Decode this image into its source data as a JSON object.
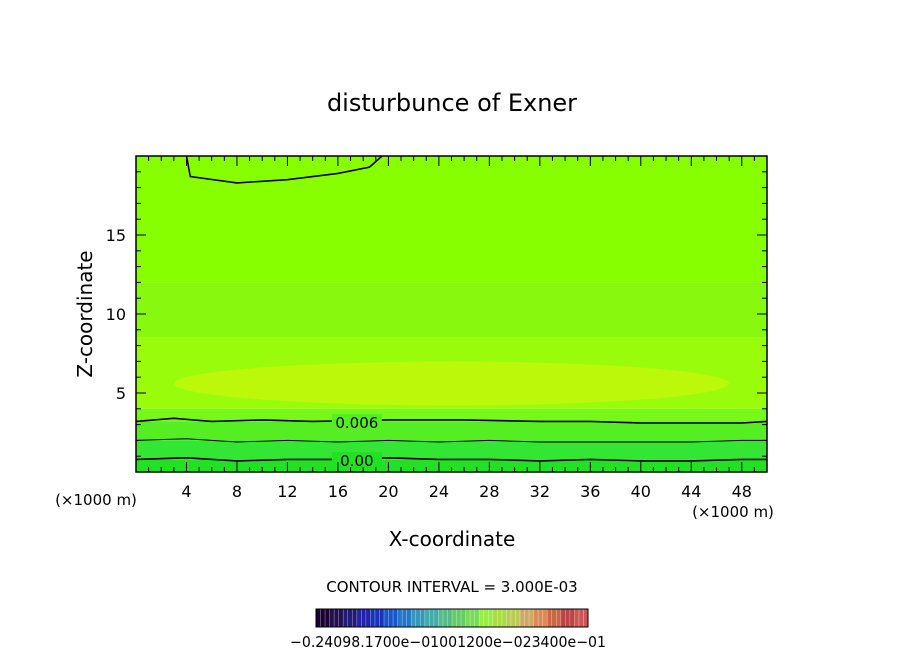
{
  "chart_data": {
    "type": "heatmap",
    "title": "disturbunce of Exner",
    "xlabel": "X-coordinate",
    "ylabel": "Z-coordinate",
    "x_unit_left": "(×1000 m)",
    "x_unit_right": "(×1000 m)",
    "xlim": [
      0,
      50
    ],
    "ylim": [
      0,
      20
    ],
    "x_ticks": [
      4,
      8,
      12,
      16,
      20,
      24,
      28,
      32,
      36,
      40,
      44,
      48
    ],
    "y_ticks": [
      5,
      10,
      15
    ],
    "contour_interval_text": "CONTOUR INTERVAL = 3.000E-03",
    "contour_labels": [
      {
        "text": "0.006",
        "x": 17.5,
        "z": 3.1
      },
      {
        "text": "0.00",
        "x": 17.5,
        "z": 0.7
      }
    ],
    "contours": [
      {
        "name": "top",
        "points": [
          [
            4,
            20
          ],
          [
            4.3,
            18.7
          ],
          [
            8,
            18.3
          ],
          [
            12,
            18.5
          ],
          [
            16,
            18.9
          ],
          [
            18.5,
            19.3
          ],
          [
            19.5,
            20
          ]
        ]
      },
      {
        "name": "0.006",
        "points": [
          [
            0,
            3.2
          ],
          [
            3,
            3.4
          ],
          [
            6,
            3.2
          ],
          [
            10,
            3.3
          ],
          [
            14,
            3.2
          ],
          [
            20,
            3.3
          ],
          [
            26,
            3.3
          ],
          [
            32,
            3.2
          ],
          [
            36,
            3.2
          ],
          [
            40,
            3.1
          ],
          [
            44,
            3.1
          ],
          [
            48,
            3.1
          ],
          [
            50,
            3.2
          ]
        ]
      },
      {
        "name": "mid1",
        "points": [
          [
            0,
            2.0
          ],
          [
            4,
            2.1
          ],
          [
            8,
            1.9
          ],
          [
            12,
            2.0
          ],
          [
            16,
            1.9
          ],
          [
            20,
            2.0
          ],
          [
            24,
            1.9
          ],
          [
            28,
            2.0
          ],
          [
            32,
            1.9
          ],
          [
            36,
            1.9
          ],
          [
            40,
            1.9
          ],
          [
            44,
            1.9
          ],
          [
            48,
            2.0
          ],
          [
            50,
            2.0
          ]
        ]
      },
      {
        "name": "0.00",
        "points": [
          [
            0,
            0.8
          ],
          [
            4,
            0.9
          ],
          [
            8,
            0.7
          ],
          [
            12,
            0.8
          ],
          [
            16,
            0.8
          ],
          [
            20,
            0.9
          ],
          [
            24,
            0.8
          ],
          [
            28,
            0.8
          ],
          [
            32,
            0.7
          ],
          [
            36,
            0.8
          ],
          [
            40,
            0.7
          ],
          [
            44,
            0.7
          ],
          [
            48,
            0.8
          ],
          [
            50,
            0.8
          ]
        ]
      }
    ],
    "bands": [
      {
        "z": [
          0,
          0.8
        ],
        "color": "#22e022"
      },
      {
        "z": [
          0.8,
          2.0
        ],
        "color": "#33e633"
      },
      {
        "z": [
          2.0,
          3.2
        ],
        "color": "#55ee22"
      },
      {
        "z": [
          3.2,
          4.0
        ],
        "color": "#77f71a"
      },
      {
        "z": [
          4.0,
          8.5
        ],
        "color": "#99fc0a"
      },
      {
        "z": [
          8.5,
          12.0
        ],
        "color": "#88f80f"
      },
      {
        "z": [
          12.0,
          20.0
        ],
        "color": "#88ff00"
      }
    ],
    "colorbar": {
      "label_text": "−0.24098.1700e−01001200e−023400e−01",
      "colors": [
        "#1a0033",
        "#22114d",
        "#221a77",
        "#2222aa",
        "#1a33bb",
        "#1a55cc",
        "#2277cc",
        "#3399bb",
        "#44aaaa",
        "#55bb88",
        "#66cc66",
        "#77dd55",
        "#99ee44",
        "#aadd44",
        "#bbcc55",
        "#ccaa66",
        "#dd8855",
        "#cc6644",
        "#bb4444",
        "#cc5555"
      ]
    },
    "grid": false
  },
  "colors": {
    "contour": "#000000",
    "highlight": "#c9f70a"
  }
}
